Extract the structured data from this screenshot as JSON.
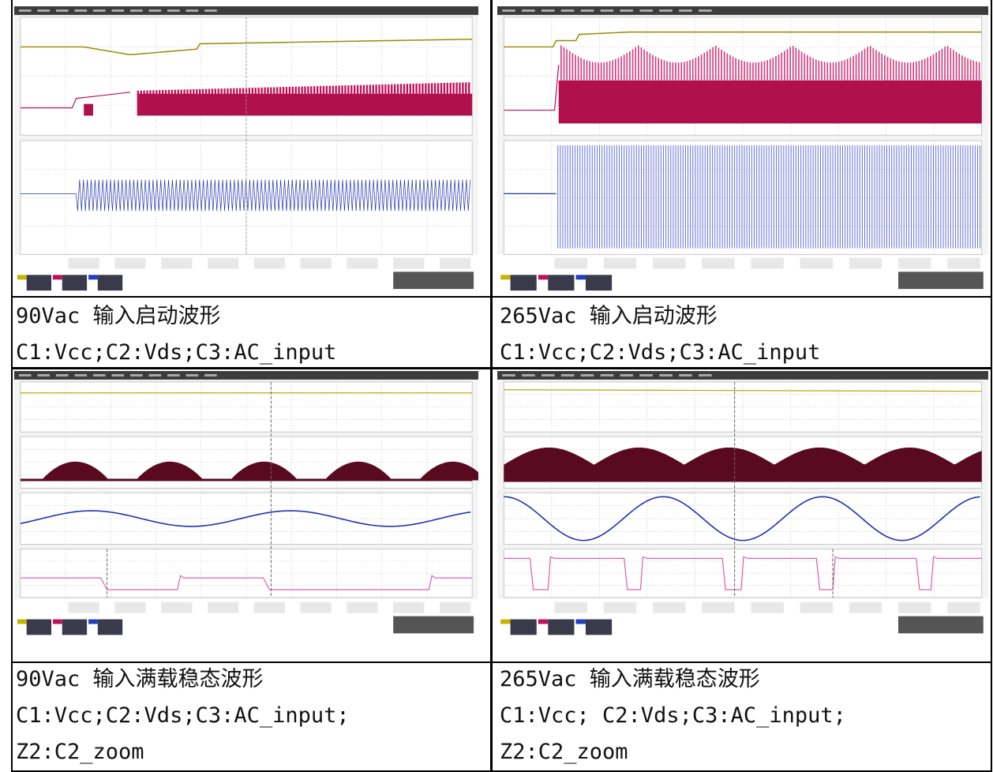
{
  "cells": [
    {
      "caption_lines": [
        "90Vac 输入启动波形",
        "C1:Vcc;C2:Vds;C3:AC_input"
      ]
    },
    {
      "caption_lines": [
        "265Vac 输入启动波形",
        "C1:Vcc;C2:Vds;C3:AC_input"
      ]
    },
    {
      "caption_lines": [
        "90Vac 输入满载稳态波形",
        "C1:Vcc;C2:Vds;C3:AC_input;",
        "Z2:C2_zoom"
      ]
    },
    {
      "caption_lines": [
        "265Vac 输入满载稳态波形",
        "C1:Vcc; C2:Vds;C3:AC_input;",
        "Z2:C2_zoom"
      ]
    }
  ]
}
